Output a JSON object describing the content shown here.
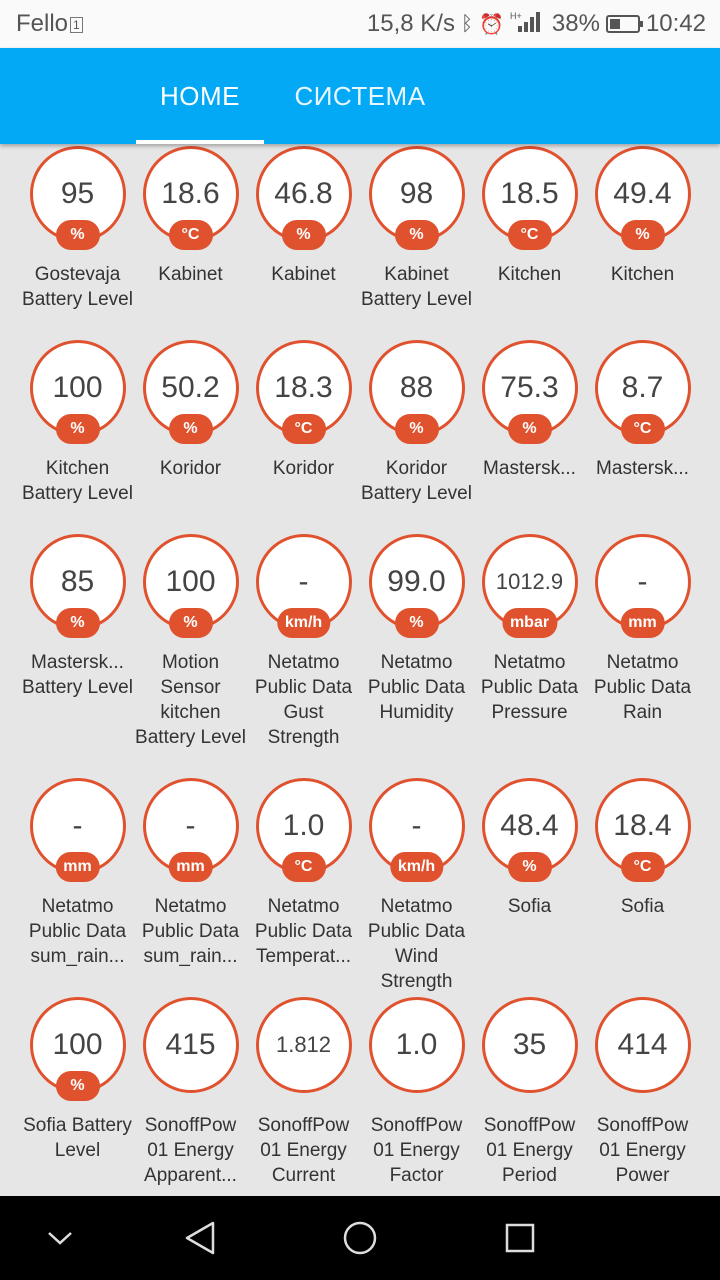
{
  "status_bar": {
    "carrier": "Fello",
    "network_speed": "15,8 K/s",
    "battery_pct": "38%",
    "time": "10:42"
  },
  "tabs": [
    {
      "label": "HOME",
      "active": true
    },
    {
      "label": "СИСТЕМА",
      "active": false
    }
  ],
  "accent_color": "#e0522e",
  "appbar_color": "#03a9f4",
  "rows": [
    [
      {
        "value": "95",
        "unit": "%",
        "label": "Gostevaja Battery Level"
      },
      {
        "value": "18.6",
        "unit": "°C",
        "label": "Kabinet"
      },
      {
        "value": "46.8",
        "unit": "%",
        "label": "Kabinet"
      },
      {
        "value": "98",
        "unit": "%",
        "label": "Kabinet Battery Level"
      },
      {
        "value": "18.5",
        "unit": "°C",
        "label": "Kitchen"
      },
      {
        "value": "49.4",
        "unit": "%",
        "label": "Kitchen"
      }
    ],
    [
      {
        "value": "100",
        "unit": "%",
        "label": "Kitchen Battery Level"
      },
      {
        "value": "50.2",
        "unit": "%",
        "label": "Koridor"
      },
      {
        "value": "18.3",
        "unit": "°C",
        "label": "Koridor"
      },
      {
        "value": "88",
        "unit": "%",
        "label": "Koridor Battery Level"
      },
      {
        "value": "75.3",
        "unit": "%",
        "label": "Mastersk..."
      },
      {
        "value": "8.7",
        "unit": "°C",
        "label": "Mastersk..."
      }
    ],
    [
      {
        "value": "85",
        "unit": "%",
        "label": "Mastersk... Battery Level"
      },
      {
        "value": "100",
        "unit": "%",
        "label": "Motion Sensor kitchen Battery Level"
      },
      {
        "value": "-",
        "unit": "km/h",
        "label": "Netatmo Public Data Gust Strength"
      },
      {
        "value": "99.0",
        "unit": "%",
        "label": "Netatmo Public Data Humidity"
      },
      {
        "value": "1012.9",
        "unit": "mbar",
        "label": "Netatmo Public Data Pressure"
      },
      {
        "value": "-",
        "unit": "mm",
        "label": "Netatmo Public Data Rain"
      }
    ],
    [
      {
        "value": "-",
        "unit": "mm",
        "label": "Netatmo Public Data sum_rain..."
      },
      {
        "value": "-",
        "unit": "mm",
        "label": "Netatmo Public Data sum_rain..."
      },
      {
        "value": "1.0",
        "unit": "°C",
        "label": "Netatmo Public Data Temperat..."
      },
      {
        "value": "-",
        "unit": "km/h",
        "label": "Netatmo Public Data Wind Strength"
      },
      {
        "value": "48.4",
        "unit": "%",
        "label": "Sofia"
      },
      {
        "value": "18.4",
        "unit": "°C",
        "label": "Sofia"
      }
    ],
    [
      {
        "value": "100",
        "unit": "%",
        "label": "Sofia Battery Level"
      },
      {
        "value": "415",
        "unit": "",
        "label": "SonoffPow 01 Energy Apparent..."
      },
      {
        "value": "1.812",
        "unit": "",
        "label": "SonoffPow 01 Energy Current"
      },
      {
        "value": "1.0",
        "unit": "",
        "label": "SonoffPow 01 Energy Factor"
      },
      {
        "value": "35",
        "unit": "",
        "label": "SonoffPow 01 Energy Period"
      },
      {
        "value": "414",
        "unit": "",
        "label": "SonoffPow 01 Energy Power"
      }
    ]
  ],
  "nav": [
    "chevron-down-icon",
    "back-icon",
    "home-icon",
    "recents-icon"
  ]
}
